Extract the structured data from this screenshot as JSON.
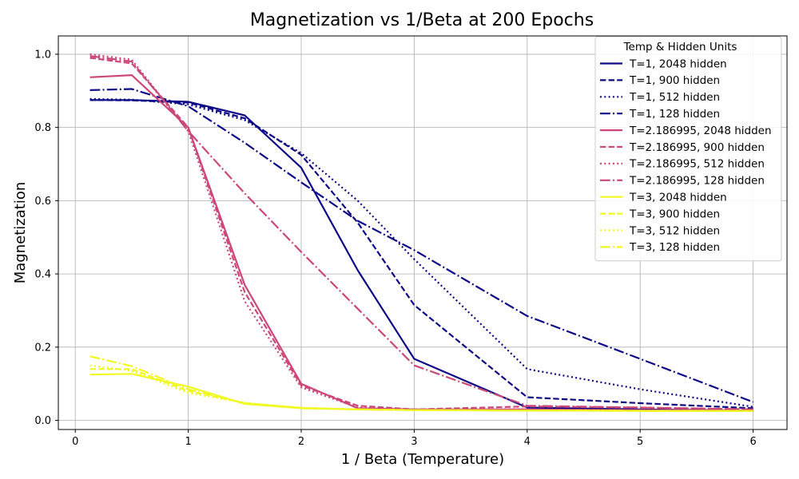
{
  "chart_data": {
    "type": "line",
    "title": "Magnetization vs 1/Beta at 200 Epochs",
    "xlabel": "1 / Beta (Temperature)",
    "ylabel": "Magnetization",
    "xlim": [
      -0.15,
      6.3
    ],
    "ylim": [
      -0.025,
      1.05
    ],
    "xticks": [
      0,
      1,
      2,
      3,
      4,
      5,
      6
    ],
    "xtick_labels": [
      "0",
      "1",
      "2",
      "3",
      "4",
      "5",
      "6"
    ],
    "yticks": [
      0.0,
      0.2,
      0.4,
      0.6,
      0.8,
      1.0
    ],
    "ytick_labels": [
      "0.0",
      "0.2",
      "0.4",
      "0.6",
      "0.8",
      "1.0"
    ],
    "grid": true,
    "legend_title": "Temp & Hidden Units",
    "legend_position": "top-right",
    "x": [
      0.13,
      0.5,
      1.0,
      1.5,
      2.0,
      2.5,
      3.0,
      4.0,
      5.0,
      6.0
    ],
    "series": [
      {
        "name": "T=1, 2048 hidden",
        "color": "#0d0887",
        "dash": "solid",
        "values": [
          0.875,
          0.875,
          0.87,
          0.833,
          0.69,
          0.41,
          0.168,
          0.035,
          0.03,
          0.027
        ]
      },
      {
        "name": "T=1, 900 hidden",
        "color": "#0d0887",
        "dash": "dashed",
        "values": [
          0.875,
          0.874,
          0.868,
          0.825,
          0.725,
          0.54,
          0.315,
          0.063,
          0.047,
          0.033
        ]
      },
      {
        "name": "T=1, 512 hidden",
        "color": "#0d0887",
        "dash": "dotted",
        "values": [
          0.878,
          0.876,
          0.863,
          0.82,
          0.73,
          0.6,
          0.44,
          0.14,
          0.085,
          0.037
        ]
      },
      {
        "name": "T=1, 128 hidden",
        "color": "#0d0887",
        "dash": "dashdot",
        "values": [
          0.902,
          0.905,
          0.858,
          0.758,
          0.65,
          0.545,
          0.465,
          0.285,
          0.168,
          0.05
        ]
      },
      {
        "name": "T=2.186995, 2048 hidden",
        "color": "#cc4778",
        "dash": "solid",
        "values": [
          0.937,
          0.943,
          0.8,
          0.37,
          0.1,
          0.033,
          0.03,
          0.03,
          0.028,
          0.027
        ]
      },
      {
        "name": "T=2.186995, 900 hidden",
        "color": "#cc4778",
        "dash": "dashed",
        "values": [
          0.99,
          0.975,
          0.8,
          0.35,
          0.095,
          0.04,
          0.03,
          0.038,
          0.035,
          0.03
        ]
      },
      {
        "name": "T=2.186995, 512 hidden",
        "color": "#cc4778",
        "dash": "dotted",
        "values": [
          1.0,
          0.985,
          0.79,
          0.325,
          0.09,
          0.035,
          0.03,
          0.03,
          0.028,
          0.027
        ]
      },
      {
        "name": "T=2.186995, 128 hidden",
        "color": "#cc4778",
        "dash": "dashdot",
        "values": [
          0.995,
          0.98,
          0.79,
          0.62,
          0.46,
          0.305,
          0.15,
          0.04,
          0.035,
          0.03
        ]
      },
      {
        "name": "T=3, 2048 hidden",
        "color": "#f0f921",
        "dash": "solid",
        "values": [
          0.125,
          0.127,
          0.092,
          0.045,
          0.033,
          0.03,
          0.028,
          0.027,
          0.026,
          0.026
        ]
      },
      {
        "name": "T=3, 900 hidden",
        "color": "#f0f921",
        "dash": "dashed",
        "values": [
          0.14,
          0.14,
          0.08,
          0.047,
          0.034,
          0.03,
          0.028,
          0.027,
          0.026,
          0.026
        ]
      },
      {
        "name": "T=3, 512 hidden",
        "color": "#f0f921",
        "dash": "dotted",
        "values": [
          0.15,
          0.135,
          0.075,
          0.048,
          0.033,
          0.03,
          0.028,
          0.027,
          0.026,
          0.026
        ]
      },
      {
        "name": "T=3, 128 hidden",
        "color": "#f0f921",
        "dash": "dashdot",
        "values": [
          0.175,
          0.148,
          0.085,
          0.047,
          0.034,
          0.03,
          0.028,
          0.027,
          0.026,
          0.026
        ]
      }
    ]
  }
}
